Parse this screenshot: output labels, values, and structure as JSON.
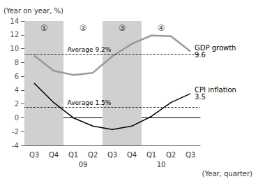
{
  "chart_data": {
    "type": "line",
    "categories": [
      "Q3",
      "Q4",
      "Q1",
      "Q2",
      "Q3",
      "Q4",
      "Q1",
      "Q2",
      "Q3"
    ],
    "series": [
      {
        "name": "GDP growth",
        "color": "#999999",
        "values": [
          9.0,
          6.8,
          6.2,
          6.5,
          8.9,
          10.7,
          11.9,
          11.8,
          9.6
        ],
        "end_label": "9.6"
      },
      {
        "name": "CPI inflation",
        "color": "#000000",
        "values": [
          5.0,
          2.2,
          0.0,
          -1.2,
          -1.7,
          -1.2,
          0.2,
          2.2,
          3.5
        ],
        "end_label": "3.5"
      }
    ],
    "averages": [
      {
        "value": 9.2,
        "label": "Average 9.2%"
      },
      {
        "value": 1.5,
        "label": "Average 1.5%"
      }
    ],
    "shade_regions": [
      [
        0,
        1
      ],
      [
        4,
        5
      ]
    ],
    "shade_color": "#d0d0d0",
    "annotations": [
      {
        "x": 0.5,
        "y": 13.0,
        "text": "①"
      },
      {
        "x": 2.5,
        "y": 13.0,
        "text": "②"
      },
      {
        "x": 4.5,
        "y": 13.0,
        "text": "③"
      },
      {
        "x": 6.5,
        "y": 13.0,
        "text": "④"
      }
    ],
    "year_labels": [
      {
        "text": "09",
        "x": 2.5
      },
      {
        "text": "10",
        "x": 6.5
      }
    ],
    "ylabel": "(Year on year, %)",
    "xlabel": "(Year, quarter)",
    "ylim": [
      -4,
      14
    ],
    "yticks": [
      -4,
      -2,
      0,
      2,
      4,
      6,
      8,
      10,
      12,
      14
    ],
    "grid": false,
    "legend": false
  }
}
